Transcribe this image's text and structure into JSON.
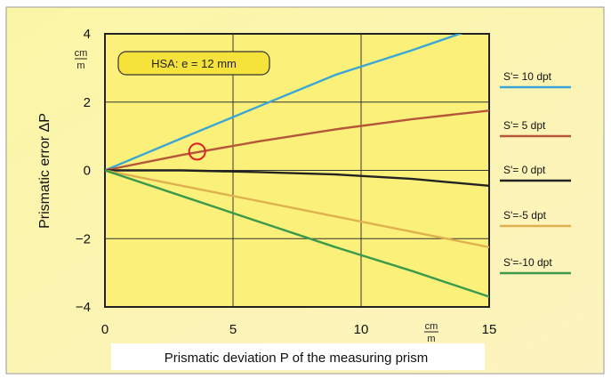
{
  "chart_data": {
    "type": "line",
    "xlabel": "Prismatic deviation P of the measuring prism",
    "ylabel": "Prismatic error ΔP",
    "x_unit": {
      "num": "cm",
      "den": "m"
    },
    "y_unit": {
      "num": "cm",
      "den": "m"
    },
    "xlim": [
      0,
      15
    ],
    "ylim": [
      -4,
      4
    ],
    "xticks": [
      "0",
      "5",
      "10",
      "15"
    ],
    "yticks": [
      "4",
      "2",
      "0",
      "−2",
      "−4"
    ],
    "grid": true,
    "annotation": "HSA: e = 12 mm",
    "marker": {
      "x": 3.6,
      "y": 0.55,
      "shape": "circle",
      "color": "#e02020"
    },
    "legend_position": "right",
    "series": [
      {
        "name": "S'= 10 dpt",
        "color": "#3aa6d6",
        "x": [
          0,
          3,
          6,
          9,
          12,
          15
        ],
        "y": [
          0,
          0.94,
          1.87,
          2.8,
          3.52,
          4.3
        ]
      },
      {
        "name": "S'= 5 dpt",
        "color": "#b5563a",
        "x": [
          0,
          3,
          6,
          9,
          12,
          15
        ],
        "y": [
          0,
          0.45,
          0.85,
          1.2,
          1.5,
          1.75
        ]
      },
      {
        "name": "S'= 0 dpt",
        "color": "#222222",
        "x": [
          0,
          3,
          6,
          9,
          12,
          15
        ],
        "y": [
          0,
          0.0,
          -0.05,
          -0.12,
          -0.25,
          -0.45
        ]
      },
      {
        "name": "S'=-5 dpt",
        "color": "#e0b050",
        "x": [
          0,
          3,
          6,
          9,
          12,
          15
        ],
        "y": [
          0,
          -0.45,
          -0.9,
          -1.35,
          -1.8,
          -2.25
        ]
      },
      {
        "name": "S'=-10 dpt",
        "color": "#3a9a4a",
        "x": [
          0,
          3,
          6,
          9,
          12,
          15
        ],
        "y": [
          0,
          -0.75,
          -1.5,
          -2.25,
          -2.95,
          -3.7
        ]
      }
    ]
  }
}
